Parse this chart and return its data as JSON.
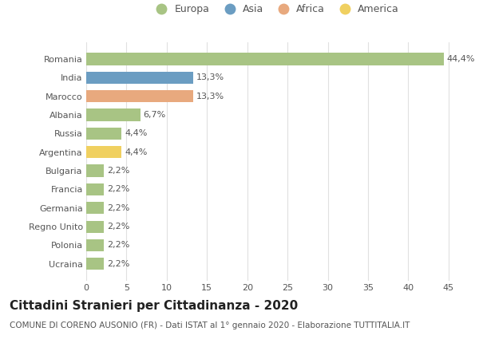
{
  "countries": [
    "Romania",
    "India",
    "Marocco",
    "Albania",
    "Russia",
    "Argentina",
    "Bulgaria",
    "Francia",
    "Germania",
    "Regno Unito",
    "Polonia",
    "Ucraina"
  ],
  "values": [
    44.4,
    13.3,
    13.3,
    6.7,
    4.4,
    4.4,
    2.2,
    2.2,
    2.2,
    2.2,
    2.2,
    2.2
  ],
  "labels": [
    "44,4%",
    "13,3%",
    "13,3%",
    "6,7%",
    "4,4%",
    "4,4%",
    "2,2%",
    "2,2%",
    "2,2%",
    "2,2%",
    "2,2%",
    "2,2%"
  ],
  "colors": [
    "#a8c484",
    "#6b9dc2",
    "#e8a97e",
    "#a8c484",
    "#a8c484",
    "#f0d060",
    "#a8c484",
    "#a8c484",
    "#a8c484",
    "#a8c484",
    "#a8c484",
    "#a8c484"
  ],
  "legend_labels": [
    "Europa",
    "Asia",
    "Africa",
    "America"
  ],
  "legend_colors": [
    "#a8c484",
    "#6b9dc2",
    "#e8a97e",
    "#f0d060"
  ],
  "title": "Cittadini Stranieri per Cittadinanza - 2020",
  "subtitle": "COMUNE DI CORENO AUSONIO (FR) - Dati ISTAT al 1° gennaio 2020 - Elaborazione TUTTITALIA.IT",
  "xlim": [
    0,
    47
  ],
  "xticks": [
    0,
    5,
    10,
    15,
    20,
    25,
    30,
    35,
    40,
    45
  ],
  "background_color": "#ffffff",
  "grid_color": "#e0e0e0",
  "title_fontsize": 11,
  "subtitle_fontsize": 7.5,
  "label_fontsize": 8,
  "tick_fontsize": 8
}
